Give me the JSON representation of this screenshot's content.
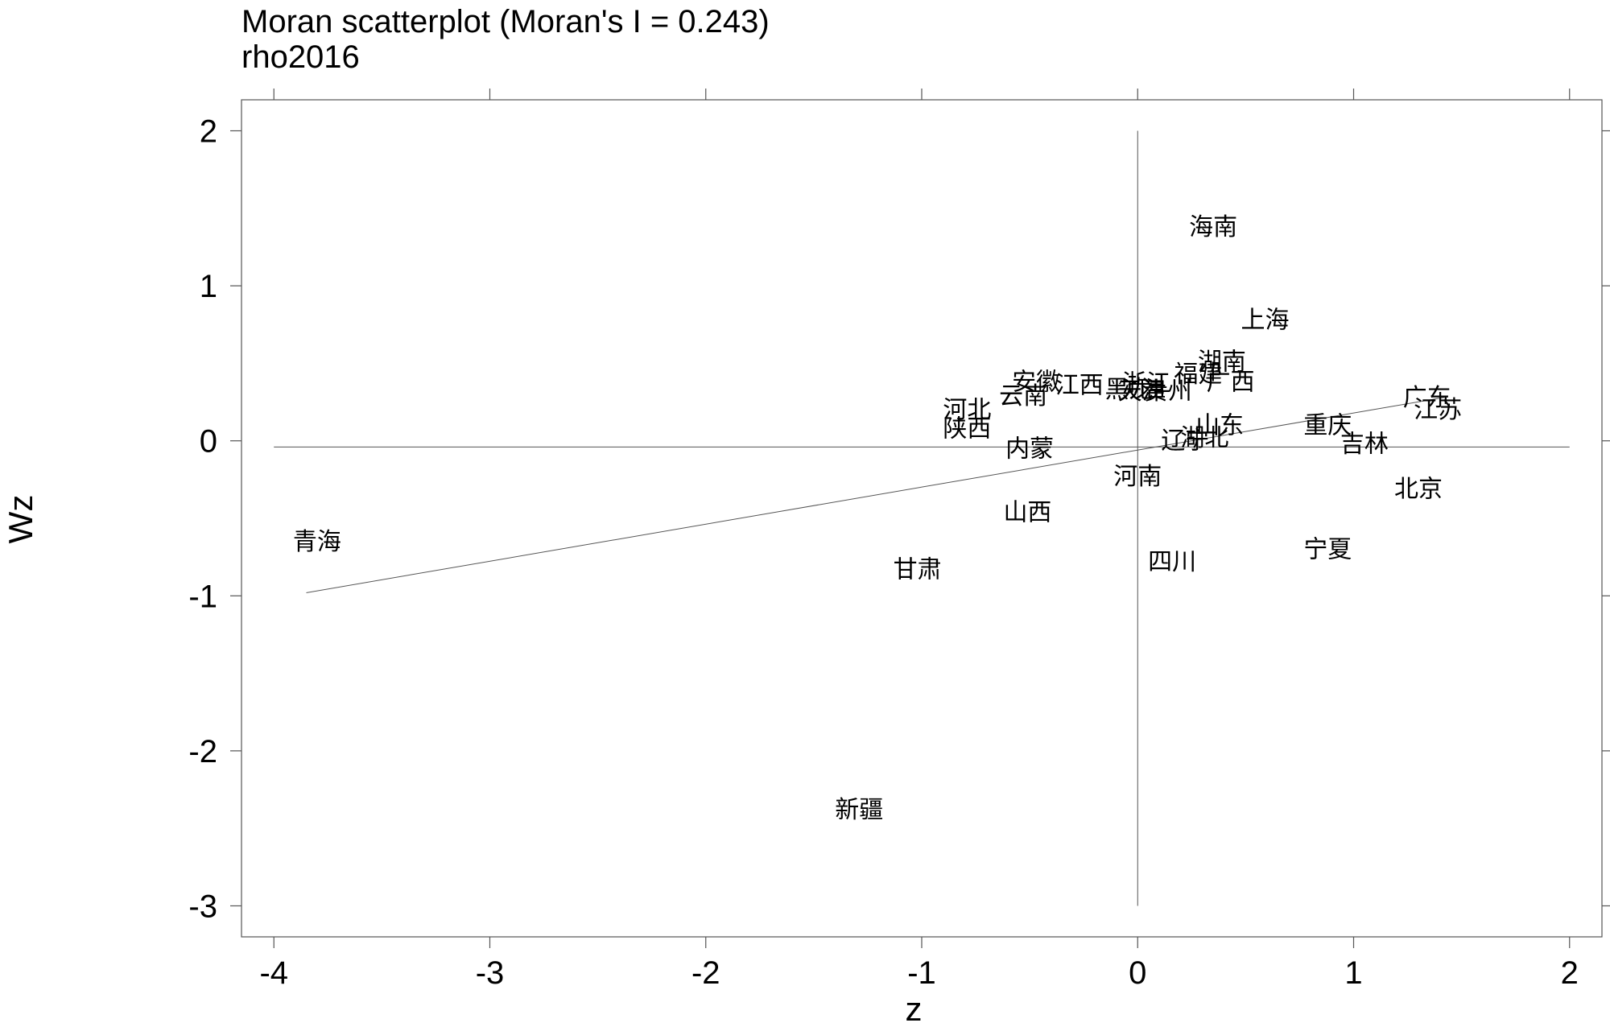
{
  "chart_data": {
    "type": "scatter",
    "title": "Moran scatterplot (Moran's I = 0.243)",
    "subtitle": "rho2016",
    "xlabel": "z",
    "ylabel": "Wz",
    "xlim": [
      -4.15,
      2.15
    ],
    "ylim": [
      -3.2,
      2.2
    ],
    "x_ticks": [
      -4,
      -3,
      -2,
      -1,
      0,
      1,
      2
    ],
    "y_ticks": [
      -3,
      -2,
      -1,
      0,
      1,
      2
    ],
    "fit_line": {
      "x": [
        -3.85,
        1.42
      ],
      "y": [
        -0.98,
        0.28
      ]
    },
    "mean_lines": {
      "x": 0,
      "y": -0.04
    },
    "points": [
      {
        "label": "青海",
        "x": -3.8,
        "y": -0.65
      },
      {
        "label": "新疆",
        "x": -1.29,
        "y": -2.38
      },
      {
        "label": "甘肃",
        "x": -1.02,
        "y": -0.83
      },
      {
        "label": "山西",
        "x": -0.51,
        "y": -0.46
      },
      {
        "label": "内蒙",
        "x": -0.5,
        "y": -0.05
      },
      {
        "label": "陕西",
        "x": -0.79,
        "y": 0.08
      },
      {
        "label": "河北",
        "x": -0.79,
        "y": 0.2
      },
      {
        "label": "云南",
        "x": -0.53,
        "y": 0.29
      },
      {
        "label": "安徽",
        "x": -0.47,
        "y": 0.38
      },
      {
        "label": "江西",
        "x": -0.27,
        "y": 0.36
      },
      {
        "label": "黑龙",
        "x": -0.04,
        "y": 0.33
      },
      {
        "label": "天津",
        "x": 0.02,
        "y": 0.32
      },
      {
        "label": "浙江",
        "x": 0.04,
        "y": 0.37
      },
      {
        "label": "贵州",
        "x": 0.14,
        "y": 0.32
      },
      {
        "label": "福建",
        "x": 0.28,
        "y": 0.43
      },
      {
        "label": "湖南",
        "x": 0.39,
        "y": 0.51
      },
      {
        "label": "广西",
        "x": 0.43,
        "y": 0.38
      },
      {
        "label": "山东",
        "x": 0.38,
        "y": 0.1
      },
      {
        "label": "湖北",
        "x": 0.31,
        "y": 0.02
      },
      {
        "label": "辽宁",
        "x": 0.22,
        "y": 0.0
      },
      {
        "label": "河南",
        "x": 0.0,
        "y": -0.23
      },
      {
        "label": "四川",
        "x": 0.16,
        "y": -0.78
      },
      {
        "label": "海南",
        "x": 0.35,
        "y": 1.38
      },
      {
        "label": "上海",
        "x": 0.59,
        "y": 0.78
      },
      {
        "label": "重庆",
        "x": 0.88,
        "y": 0.1
      },
      {
        "label": "吉林",
        "x": 1.05,
        "y": -0.02
      },
      {
        "label": "北京",
        "x": 1.3,
        "y": -0.31
      },
      {
        "label": "宁夏",
        "x": 0.88,
        "y": -0.7
      },
      {
        "label": "广东",
        "x": 1.34,
        "y": 0.28
      },
      {
        "label": "江苏",
        "x": 1.39,
        "y": 0.2
      }
    ]
  }
}
